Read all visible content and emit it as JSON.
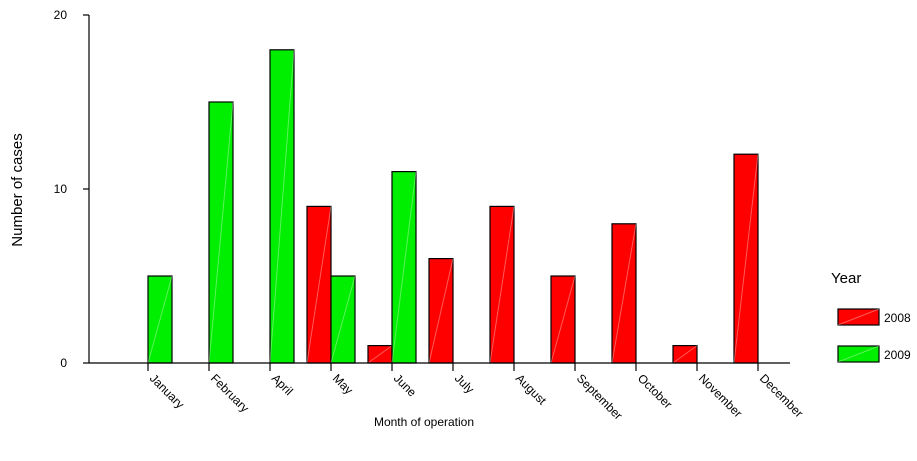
{
  "chart_data": {
    "type": "bar",
    "title": "",
    "xlabel": "Month of operation",
    "ylabel": "Number of cases",
    "ylim": [
      0,
      20
    ],
    "yticks": [
      0,
      10,
      20
    ],
    "grid": false,
    "legend_position": "right",
    "legend_title": "Year",
    "categories": [
      "January",
      "February",
      "April",
      "May",
      "June",
      "July",
      "August",
      "September",
      "October",
      "November",
      "December"
    ],
    "series": [
      {
        "name": "2008",
        "color": "#ff0000",
        "values": [
          0,
          0,
          0,
          9,
          1,
          6,
          9,
          5,
          8,
          1,
          12
        ]
      },
      {
        "name": "2009",
        "color": "#00ee00",
        "values": [
          5,
          15,
          18,
          5,
          11,
          0,
          0,
          0,
          0,
          0,
          0
        ]
      }
    ]
  }
}
